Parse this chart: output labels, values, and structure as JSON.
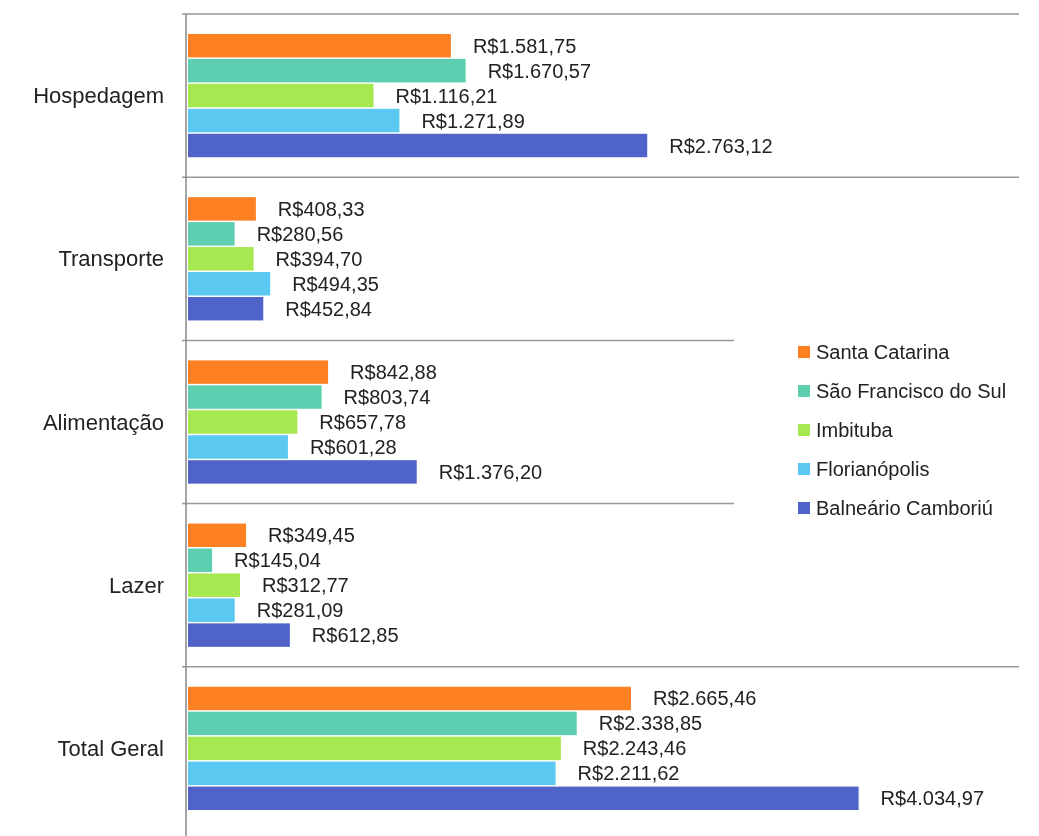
{
  "chart_data": {
    "type": "bar",
    "orientation": "horizontal",
    "categories": [
      "Hospedagem",
      "Transporte",
      "Alimentação",
      "Lazer",
      "Total Geral"
    ],
    "xlim": [
      0,
      5000
    ],
    "tick_labels": "y",
    "grid": "y",
    "legend": "right",
    "series": [
      {
        "name": "Santa Catarina",
        "color": "#fd8122",
        "values": [
          1581.75,
          408.33,
          842.88,
          349.45,
          2665.46
        ],
        "value_labels": [
          "R$1.581,75",
          "R$408,33",
          "R$842,88",
          "R$349,45",
          "R$2.665,46"
        ]
      },
      {
        "name": "São Francisco do Sul",
        "color": "#5dcfb0",
        "values": [
          1670.57,
          280.56,
          803.74,
          145.04,
          2338.85
        ],
        "value_labels": [
          "R$1.670,57",
          "R$280,56",
          "R$803,74",
          "R$145,04",
          "R$2.338,85"
        ]
      },
      {
        "name": "Imbituba",
        "color": "#a6e84f",
        "values": [
          1116.21,
          394.7,
          657.78,
          312.77,
          2243.46
        ],
        "value_labels": [
          "R$1.116,21",
          "R$394,70",
          "R$657,78",
          "R$312,77",
          "R$2.243,46"
        ]
      },
      {
        "name": "Florianópolis",
        "color": "#5ac8f0",
        "values": [
          1271.89,
          494.35,
          601.28,
          281.09,
          2211.62
        ],
        "value_labels": [
          "R$1.271,89",
          "R$494,35",
          "R$601,28",
          "R$281,09",
          "R$2.211,62"
        ]
      },
      {
        "name": "Balneário Camboriú",
        "color": "#4f63c9",
        "values": [
          2763.12,
          452.84,
          1376.2,
          612.85,
          4034.97
        ],
        "value_labels": [
          "R$2.763,12",
          "R$452,84",
          "R$1.376,20",
          "R$612,85",
          "R$4.034,97"
        ]
      }
    ]
  }
}
